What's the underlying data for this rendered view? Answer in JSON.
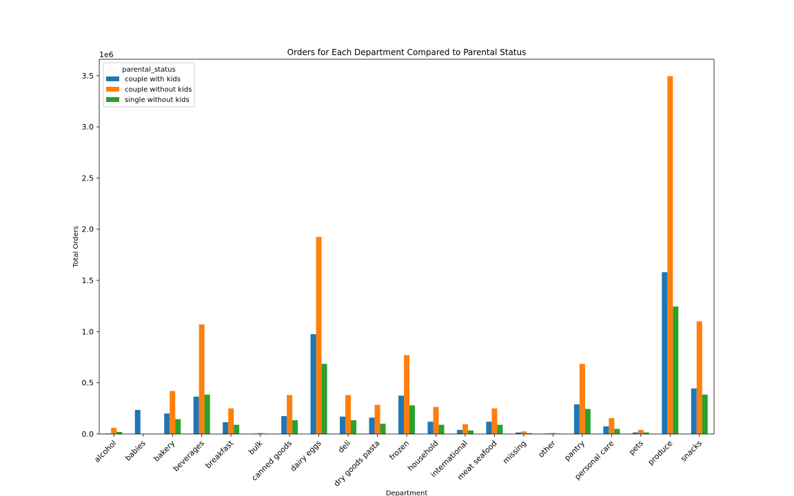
{
  "chart_data": {
    "type": "bar",
    "title": "Orders for Each Department Compared to Parental Status",
    "xlabel": "Department",
    "ylabel": "Total Orders",
    "y_scale_label": "1e6",
    "ylim": [
      0,
      3.66
    ],
    "yticks": [
      "0.0",
      "0.5",
      "1.0",
      "1.5",
      "2.0",
      "2.5",
      "3.0",
      "3.5"
    ],
    "ytick_values": [
      0,
      0.5,
      1.0,
      1.5,
      2.0,
      2.5,
      3.0,
      3.5
    ],
    "grid": false,
    "legend": {
      "title": "parental_status",
      "placement": "top-left"
    },
    "categories": [
      "alcohol",
      "babies",
      "bakery",
      "beverages",
      "breakfast",
      "bulk",
      "canned goods",
      "dairy eggs",
      "deli",
      "dry goods pasta",
      "frozen",
      "household",
      "international",
      "meat seafood",
      "missing",
      "other",
      "pantry",
      "personal care",
      "pets",
      "produce",
      "snacks"
    ],
    "series": [
      {
        "name": "couple with kids",
        "color": "#1f77b4",
        "values": [
          0.005,
          0.235,
          0.2,
          0.365,
          0.115,
          0.004,
          0.175,
          0.975,
          0.17,
          0.16,
          0.375,
          0.12,
          0.04,
          0.12,
          0.015,
          0.005,
          0.29,
          0.075,
          0.015,
          1.58,
          0.445
        ]
      },
      {
        "name": "couple without kids",
        "color": "#ff7f0e",
        "values": [
          0.06,
          0.0,
          0.42,
          1.07,
          0.25,
          0.01,
          0.38,
          1.925,
          0.38,
          0.285,
          0.77,
          0.265,
          0.095,
          0.25,
          0.025,
          0.01,
          0.685,
          0.155,
          0.04,
          3.495,
          1.1
        ]
      },
      {
        "name": "single without kids",
        "color": "#2ca02c",
        "values": [
          0.02,
          0.0,
          0.145,
          0.385,
          0.09,
          0.004,
          0.135,
          0.685,
          0.135,
          0.1,
          0.28,
          0.09,
          0.035,
          0.09,
          0.008,
          0.004,
          0.245,
          0.05,
          0.015,
          1.245,
          0.385
        ]
      }
    ]
  }
}
